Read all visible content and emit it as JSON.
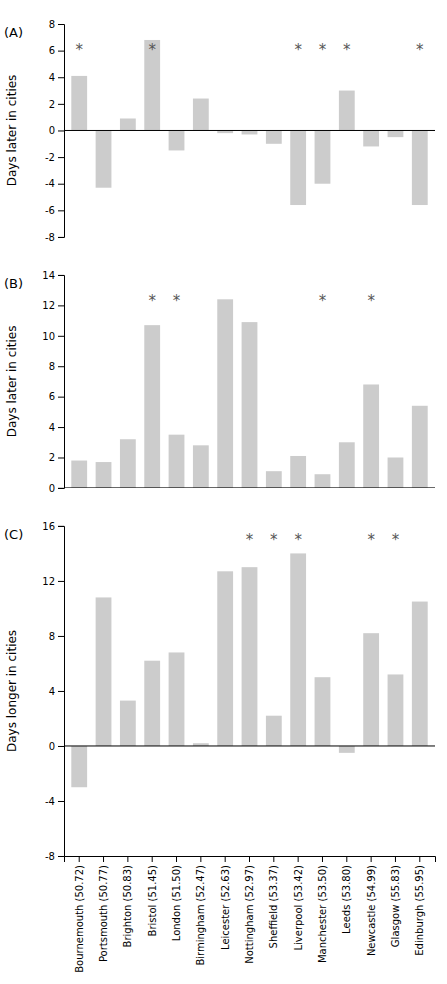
{
  "chart_data": [
    {
      "type": "bar",
      "title": "(A)",
      "categories": [
        "Bournemouth (50.72)",
        "Portsmouth (50.77)",
        "Brighton (50.83)",
        "Bristol (51.45)",
        "London (51.50)",
        "Birmingham (52.47)",
        "Leicester (52.63)",
        "Nottingham (52.97)",
        "Sheffield (53.37)",
        "Liverpool (53.42)",
        "Manchester (53.50)",
        "Leeds (53.80)",
        "Newcastle (54.99)",
        "Glasgow (55.83)",
        "Edinburgh (55.95)"
      ],
      "values": [
        4.1,
        -4.3,
        0.9,
        6.8,
        -1.5,
        2.4,
        -0.2,
        -0.3,
        -1.0,
        -5.6,
        -4.0,
        3.0,
        -1.2,
        -0.5,
        -5.6
      ],
      "color": "#cccccc",
      "ylabel": "Days later in cities",
      "ylim": [
        -8,
        8
      ],
      "yticks": [
        -8,
        -6,
        -4,
        -2,
        0,
        2,
        4,
        6,
        8
      ],
      "grid": false,
      "tick_labels": "y",
      "annotations": [
        {
          "text": "*",
          "x": "Bournemouth (50.72)",
          "y": 6.3
        },
        {
          "text": "*",
          "x": "Bristol (51.45)",
          "y": 6.3
        },
        {
          "text": "*",
          "x": "Liverpool (53.42)",
          "y": 6.3
        },
        {
          "text": "*",
          "x": "Manchester (53.50)",
          "y": 6.3
        },
        {
          "text": "*",
          "x": "Leeds (53.80)",
          "y": 6.3
        },
        {
          "text": "*",
          "x": "Edinburgh (55.95)",
          "y": 6.3
        }
      ]
    },
    {
      "type": "bar",
      "title": "(B)",
      "categories": [
        "Bournemouth (50.72)",
        "Portsmouth (50.77)",
        "Brighton (50.83)",
        "Bristol (51.45)",
        "London (51.50)",
        "Birmingham (52.47)",
        "Leicester (52.63)",
        "Nottingham (52.97)",
        "Sheffield (53.37)",
        "Liverpool (53.42)",
        "Manchester (53.50)",
        "Leeds (53.80)",
        "Newcastle (54.99)",
        "Glasgow (55.83)",
        "Edinburgh (55.95)"
      ],
      "values": [
        1.8,
        1.7,
        3.2,
        10.7,
        3.5,
        2.8,
        12.4,
        10.9,
        1.1,
        2.1,
        0.9,
        3.0,
        6.8,
        2.0,
        5.4
      ],
      "color": "#cccccc",
      "ylabel": "Days later in cities",
      "ylim": [
        0,
        14
      ],
      "yticks": [
        0,
        2,
        4,
        6,
        8,
        10,
        12,
        14
      ],
      "grid": false,
      "tick_labels": "y",
      "annotations": [
        {
          "text": "*",
          "x": "Bristol (51.45)",
          "y": 12.5
        },
        {
          "text": "*",
          "x": "London (51.50)",
          "y": 12.5
        },
        {
          "text": "*",
          "x": "Manchester (53.50)",
          "y": 12.5
        },
        {
          "text": "*",
          "x": "Newcastle (54.99)",
          "y": 12.5
        }
      ]
    },
    {
      "type": "bar",
      "title": "(C)",
      "categories": [
        "Bournemouth (50.72)",
        "Portsmouth (50.77)",
        "Brighton (50.83)",
        "Bristol (51.45)",
        "London (51.50)",
        "Birmingham (52.47)",
        "Leicester (52.63)",
        "Nottingham (52.97)",
        "Sheffield (53.37)",
        "Liverpool (53.42)",
        "Manchester (53.50)",
        "Leeds (53.80)",
        "Newcastle (54.99)",
        "Glasgow (55.83)",
        "Edinburgh (55.95)"
      ],
      "values": [
        -3.0,
        10.8,
        3.3,
        6.2,
        6.8,
        0.2,
        12.7,
        13.0,
        2.2,
        14.0,
        5.0,
        -0.5,
        8.2,
        5.2,
        10.5
      ],
      "color": "#cccccc",
      "ylabel": "Days longer in cities",
      "ylim": [
        -8,
        16
      ],
      "yticks": [
        -8,
        -4,
        0,
        4,
        8,
        12,
        16
      ],
      "grid": false,
      "annotations": [
        {
          "text": "*",
          "x": "Nottingham (52.97)",
          "y": 15.2
        },
        {
          "text": "*",
          "x": "Sheffield (53.37)",
          "y": 15.2
        },
        {
          "text": "*",
          "x": "Liverpool (53.42)",
          "y": 15.2
        },
        {
          "text": "*",
          "x": "Newcastle (54.99)",
          "y": 15.2
        },
        {
          "text": "*",
          "x": "Glasgow (55.83)",
          "y": 15.2
        }
      ]
    }
  ]
}
